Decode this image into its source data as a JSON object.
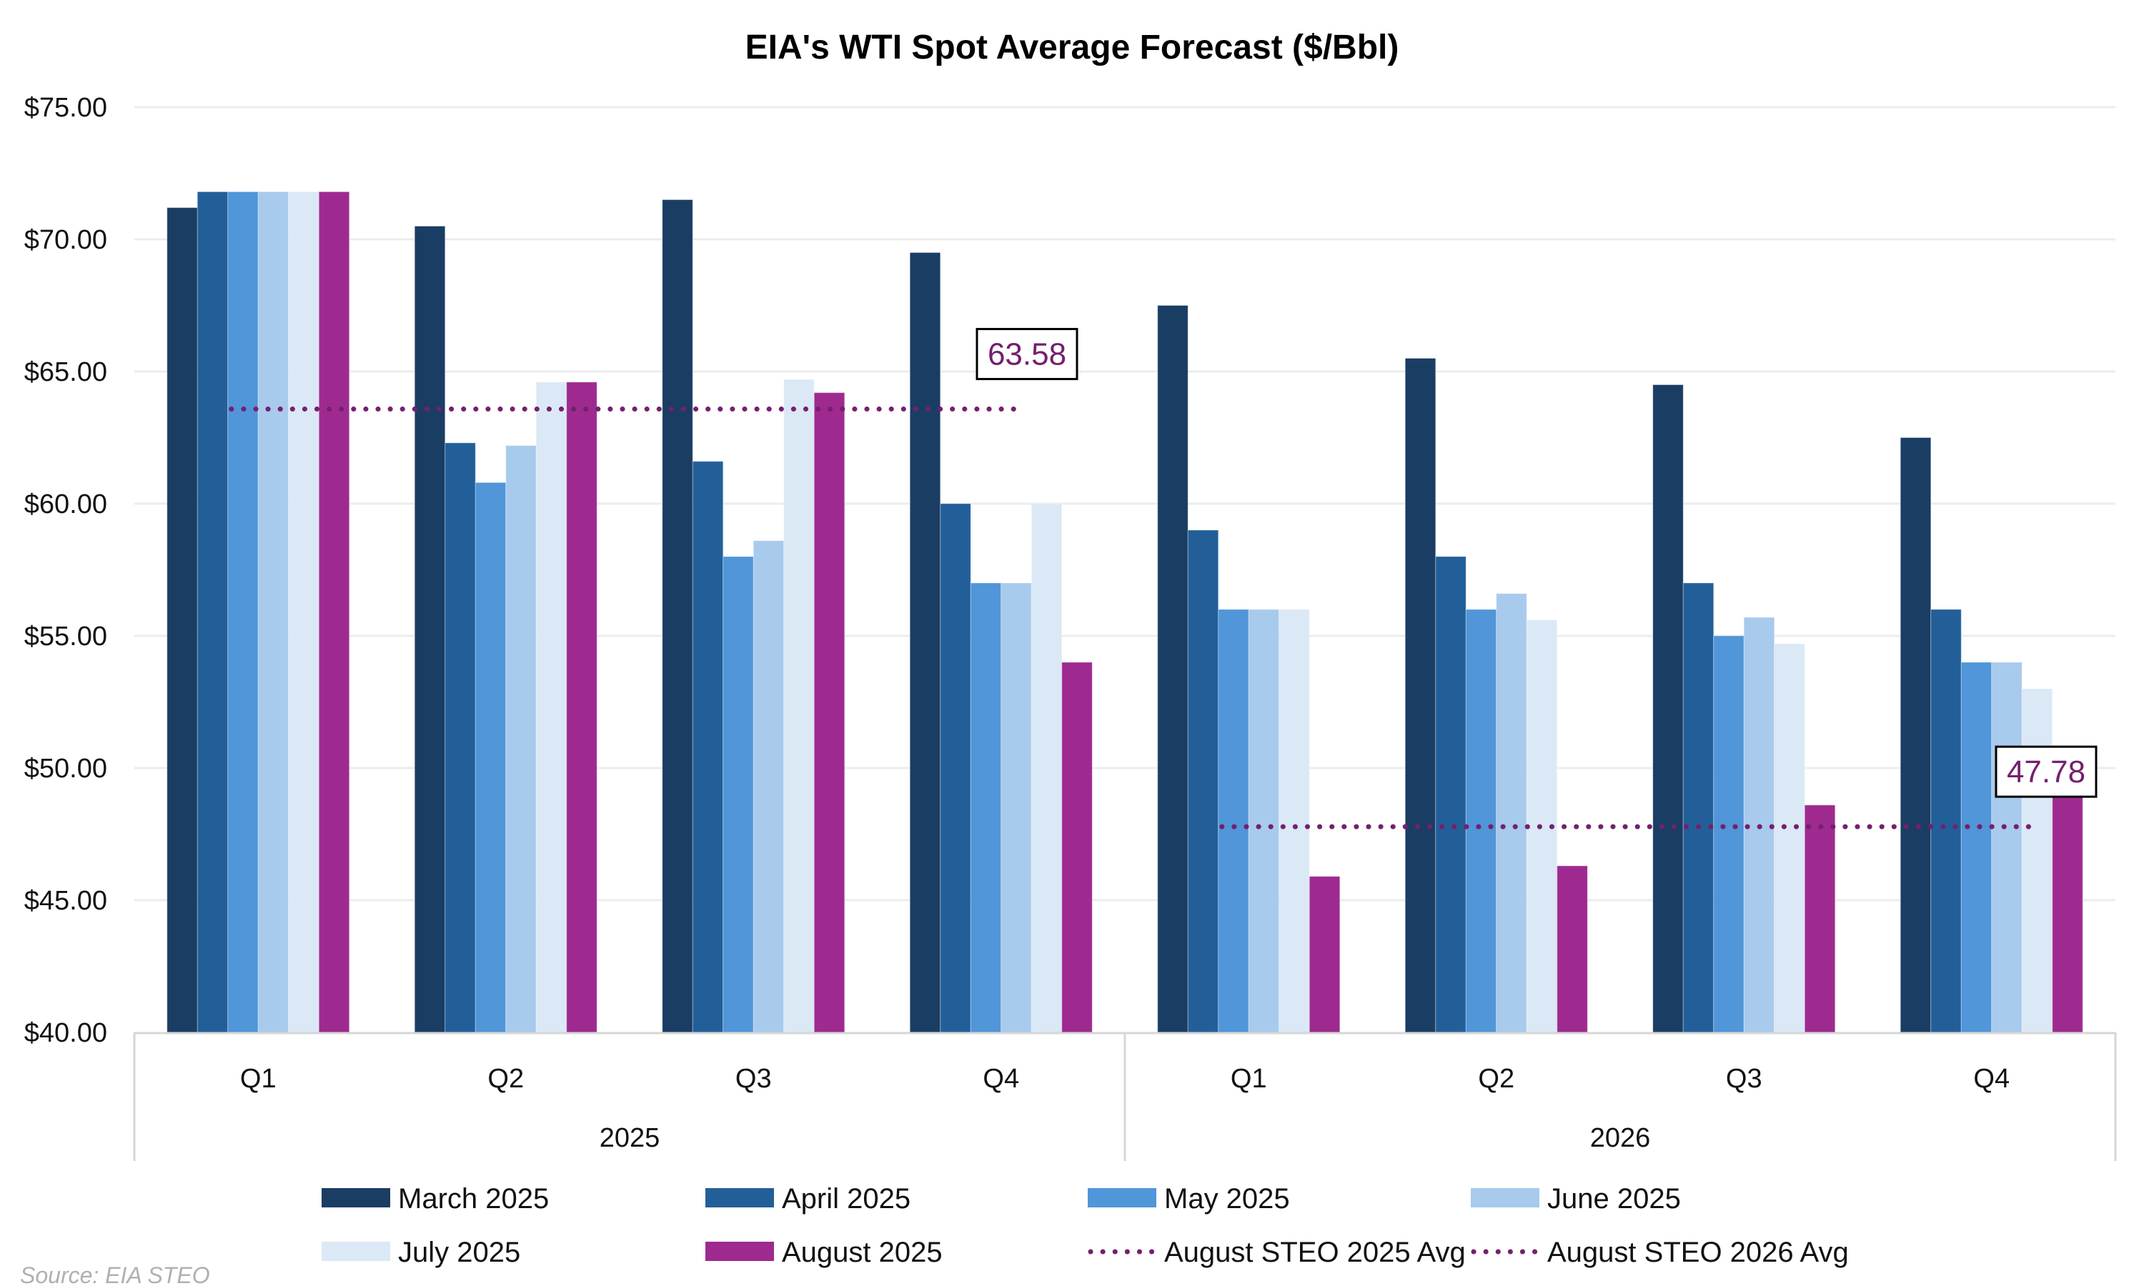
{
  "chart_data": {
    "type": "bar",
    "title": "EIA's WTI Spot Average Forecast ($/Bbl)",
    "xlabel": "",
    "ylabel": "",
    "ylim": [
      40,
      75
    ],
    "yticks": [
      40,
      45,
      50,
      55,
      60,
      65,
      70,
      75
    ],
    "ytick_labels": [
      "$40.00",
      "$45.00",
      "$50.00",
      "$55.00",
      "$60.00",
      "$65.00",
      "$70.00",
      "$75.00"
    ],
    "grid": true,
    "categories": [
      "Q1",
      "Q2",
      "Q3",
      "Q4",
      "Q1",
      "Q2",
      "Q3",
      "Q4"
    ],
    "category_groups": [
      {
        "label": "2025",
        "span": 4
      },
      {
        "label": "2026",
        "span": 4
      }
    ],
    "series": [
      {
        "name": "March 2025",
        "color": "#1a3d64",
        "values": [
          71.2,
          70.5,
          71.5,
          69.5,
          67.5,
          65.5,
          64.5,
          62.5
        ]
      },
      {
        "name": "April 2025",
        "color": "#225f99",
        "values": [
          71.8,
          62.3,
          61.6,
          60.0,
          59.0,
          58.0,
          57.0,
          56.0
        ]
      },
      {
        "name": "May 2025",
        "color": "#5096d9",
        "values": [
          71.8,
          60.8,
          58.0,
          57.0,
          56.0,
          56.0,
          55.0,
          54.0
        ]
      },
      {
        "name": "June 2025",
        "color": "#a8caec",
        "values": [
          71.8,
          62.2,
          58.6,
          57.0,
          56.0,
          56.6,
          55.7,
          54.0
        ]
      },
      {
        "name": "July 2025",
        "color": "#dbe8f6",
        "values": [
          71.8,
          64.6,
          64.7,
          60.0,
          56.0,
          55.6,
          54.7,
          53.0
        ]
      },
      {
        "name": "August 2025",
        "color": "#9e2a90",
        "values": [
          71.8,
          64.6,
          64.2,
          54.0,
          45.9,
          46.3,
          48.6,
          50.0
        ]
      }
    ],
    "reference_lines": [
      {
        "name": "August STEO 2025 Avg",
        "value": 63.58,
        "label": "63.58",
        "from_category": 0,
        "to_category": 3,
        "color": "#74206e",
        "style": "dotted"
      },
      {
        "name": "August STEO 2026 Avg",
        "value": 47.78,
        "label": "47.78",
        "from_category": 4,
        "to_category": 7,
        "color": "#74206e",
        "style": "dotted"
      }
    ],
    "legend": {
      "placement": "bottom",
      "items": [
        {
          "label": "March 2025",
          "kind": "bar",
          "color": "#1a3d64"
        },
        {
          "label": "April 2025",
          "kind": "bar",
          "color": "#225f99"
        },
        {
          "label": "May 2025",
          "kind": "bar",
          "color": "#5096d9"
        },
        {
          "label": "June 2025",
          "kind": "bar",
          "color": "#a8caec"
        },
        {
          "label": "July 2025",
          "kind": "bar",
          "color": "#dbe8f6"
        },
        {
          "label": "August 2025",
          "kind": "bar",
          "color": "#9e2a90"
        },
        {
          "label": "August STEO 2025 Avg",
          "kind": "dotted",
          "color": "#74206e"
        },
        {
          "label": "August STEO 2026 Avg",
          "kind": "dotted",
          "color": "#74206e"
        }
      ]
    },
    "source": "Source: EIA STEO"
  }
}
